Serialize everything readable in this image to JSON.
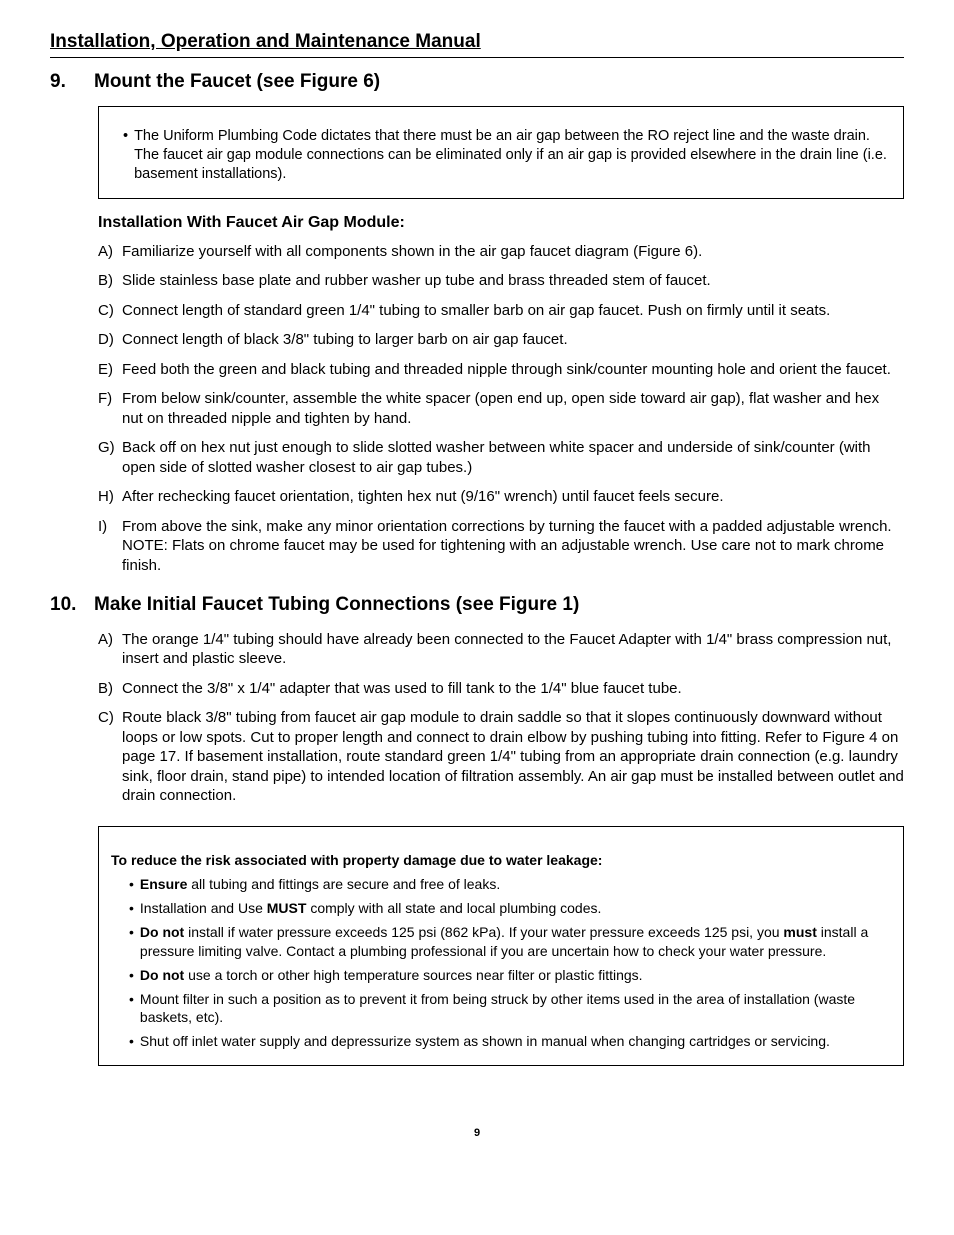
{
  "header": "Installation, Operation and Maintenance Manual",
  "section9": {
    "number": "9.",
    "title": "Mount the Faucet (see Figure 6)",
    "note": "The Uniform Plumbing Code dictates that there must be an air gap between the RO reject line and the waste drain. The faucet air gap module connections can be eliminated only if an air gap is provided elsewhere in the drain line (i.e. basement installations).",
    "subhead": "Installation With Faucet Air Gap Module:",
    "steps": {
      "A": "Familiarize yourself with all components shown in the air gap faucet diagram (Figure 6).",
      "B": "Slide stainless base plate and rubber washer up tube and brass threaded stem of faucet.",
      "C": "Connect length of standard green 1/4\" tubing to smaller barb on air gap faucet. Push on firmly until it seats.",
      "D": "Connect length of black 3/8\" tubing to larger barb on air gap faucet.",
      "E": "Feed both the green and black tubing and threaded nipple through sink/counter mounting hole and orient the faucet.",
      "F": "From below sink/counter, assemble the white spacer (open end up, open side toward air gap), flat washer and hex nut on threaded nipple and tighten by hand.",
      "G": "Back off on hex nut just enough to slide slotted washer between white spacer and underside of sink/counter (with open side of slotted washer closest to air gap tubes.)",
      "H": "After rechecking faucet orientation, tighten hex nut (9/16\" wrench) until faucet feels secure.",
      "I": "From above the sink, make any minor orientation corrections by turning the faucet with a padded adjustable wrench. NOTE: Flats on chrome faucet may be used for tightening with an adjustable wrench. Use care not to mark chrome finish."
    }
  },
  "section10": {
    "number": "10.",
    "title": "Make Initial Faucet Tubing Connections (see Figure 1)",
    "steps": {
      "A": "The orange 1/4\" tubing should have already been connected to the Faucet Adapter with 1/4\" brass compression nut, insert and plastic sleeve.",
      "B": "Connect the 3/8\" x 1/4\" adapter that was used to fill tank to the 1/4\" blue faucet tube.",
      "C": "Route black 3/8\" tubing from faucet air gap module to drain saddle so that it slopes continuously downward without loops or low spots. Cut to proper length and connect to drain elbow by pushing tubing into fitting. Refer to Figure 4 on page 17. If basement installation, route standard green 1/4\" tubing from an appropriate drain connection (e.g. laundry sink, floor drain, stand pipe) to intended location of filtration assembly. An air gap must be installed between outlet and drain connection."
    },
    "caution_head": "To reduce the risk associated with property damage due to water leakage:",
    "caution": {
      "ensure": " all tubing and fittings are secure and free of leaks.",
      "must": " comply with all state and local plumbing codes.",
      "c_part1": " install if water pressure exceeds 125 psi (862 kPa).  If your water pressure exceeds 125 psi, you ",
      "c_part2": " install a pressure limiting valve.  Contact a plumbing professional if you are uncertain how to check your water pressure.",
      "torch": " use a torch or other high temperature sources near filter or plastic fittings.",
      "mount": "Mount filter in such a position as to prevent it from being struck by other items used in the area of installation (waste baskets, etc).",
      "shutoff": "Shut off inlet water supply and depressurize system as shown in manual when changing cartridges or servicing."
    }
  },
  "labels": {
    "ensure": "Ensure",
    "must_prefix": "Installation and Use ",
    "must": "MUST",
    "donot": "Do not",
    "must2": "must"
  },
  "pagenum": "9"
}
